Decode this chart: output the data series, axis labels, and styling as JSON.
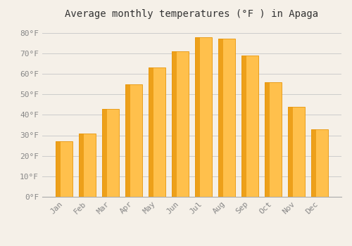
{
  "title": "Average monthly temperatures (°F ) in Apaga",
  "months": [
    "Jan",
    "Feb",
    "Mar",
    "Apr",
    "May",
    "Jun",
    "Jul",
    "Aug",
    "Sep",
    "Oct",
    "Nov",
    "Dec"
  ],
  "values": [
    27,
    31,
    43,
    55,
    63,
    71,
    78,
    77,
    69,
    56,
    44,
    33
  ],
  "bar_color_face": "#FFC04C",
  "bar_color_edge": "#E8960A",
  "background_color": "#F5F0E8",
  "plot_bg_color": "#F5F0E8",
  "grid_color": "#CCCCCC",
  "yticks": [
    0,
    10,
    20,
    30,
    40,
    50,
    60,
    70,
    80
  ],
  "ylim": [
    0,
    84
  ],
  "title_fontsize": 10,
  "tick_fontsize": 8,
  "tick_color": "#888888",
  "title_color": "#333333"
}
